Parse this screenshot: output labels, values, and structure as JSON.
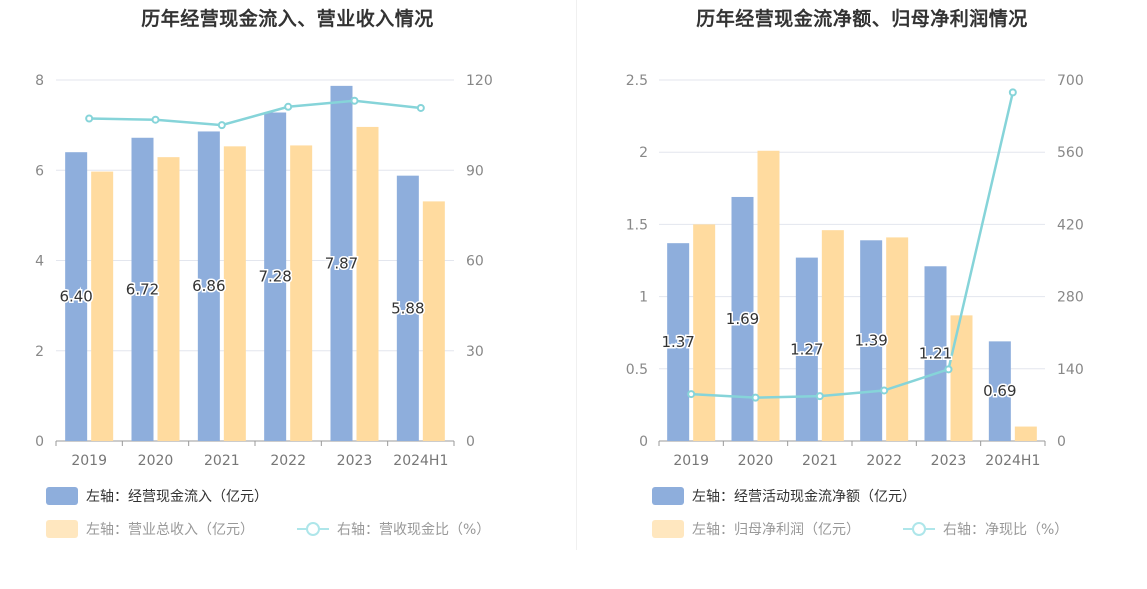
{
  "chart_data": [
    {
      "type": "bar",
      "title": "历年经营现金流入、营业收入情况",
      "categories": [
        "2019",
        "2020",
        "2021",
        "2022",
        "2023",
        "2024H1"
      ],
      "left_axis": {
        "ylim": [
          0,
          8
        ],
        "ticks": [
          "0",
          "2",
          "4",
          "6",
          "8"
        ]
      },
      "right_axis": {
        "ylim": [
          0,
          120
        ],
        "ticks": [
          "0",
          "30",
          "60",
          "90",
          "120"
        ]
      },
      "series": [
        {
          "name": "左轴：经营现金流入（亿元）",
          "axis": "left",
          "kind": "bar",
          "color": "#8eaedc",
          "values": [
            6.4,
            6.72,
            6.86,
            7.28,
            7.87,
            5.88
          ],
          "labels": [
            "6.40",
            "6.72",
            "6.86",
            "7.28",
            "7.87",
            "5.88"
          ]
        },
        {
          "name": "左轴：营业总收入（亿元）",
          "axis": "left",
          "kind": "bar",
          "color": "#ffdb9f",
          "values": [
            5.97,
            6.29,
            6.53,
            6.55,
            6.96,
            5.31
          ]
        },
        {
          "name": "右轴：营收现金比（%）",
          "axis": "right",
          "kind": "line",
          "color": "#86d4d9",
          "values": [
            107.2,
            106.8,
            105.0,
            111.1,
            113.1,
            110.7
          ]
        }
      ]
    },
    {
      "type": "bar",
      "title": "历年经营现金流净额、归母净利润情况",
      "categories": [
        "2019",
        "2020",
        "2021",
        "2022",
        "2023",
        "2024H1"
      ],
      "left_axis": {
        "ylim": [
          0,
          2.5
        ],
        "ticks": [
          "0",
          "0.5",
          "1",
          "1.5",
          "2",
          "2.5"
        ]
      },
      "right_axis": {
        "ylim": [
          0,
          700
        ],
        "ticks": [
          "0",
          "140",
          "280",
          "420",
          "560",
          "700"
        ]
      },
      "series": [
        {
          "name": "左轴：经营活动现金流净额（亿元）",
          "axis": "left",
          "kind": "bar",
          "color": "#8eaedc",
          "values": [
            1.37,
            1.69,
            1.27,
            1.39,
            1.21,
            0.69
          ],
          "labels": [
            "1.37",
            "1.69",
            "1.27",
            "1.39",
            "1.21",
            "0.69"
          ]
        },
        {
          "name": "左轴：归母净利润（亿元）",
          "axis": "left",
          "kind": "bar",
          "color": "#ffdb9f",
          "values": [
            1.5,
            2.01,
            1.46,
            1.41,
            0.87,
            0.1
          ]
        },
        {
          "name": "右轴：净现比（%）",
          "axis": "right",
          "kind": "line",
          "color": "#86d4d9",
          "values": [
            91,
            84,
            87,
            98,
            139,
            676
          ]
        }
      ]
    }
  ]
}
